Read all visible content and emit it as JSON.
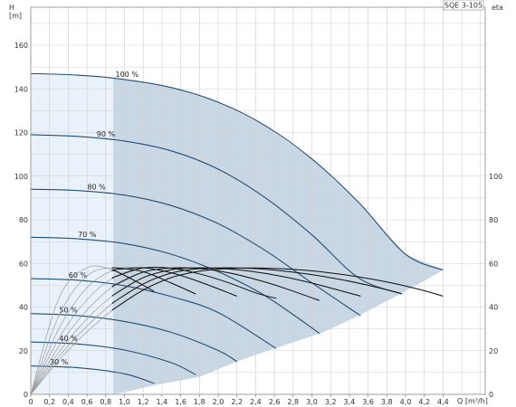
{
  "chart_data": {
    "type": "line",
    "title": "SQE 3-105",
    "xlabel": "Q [m³/h]",
    "ylabel": "H\n[m]",
    "y2label": "eta",
    "xlim": [
      0,
      5.0
    ],
    "ylim": [
      0,
      180
    ],
    "y2lim": [
      0,
      180
    ],
    "x_ticks": [
      "0",
      "0,2",
      "0,4",
      "0,6",
      "0,8",
      "1,0",
      "1,2",
      "1,4",
      "1,6",
      "1,8",
      "2,0",
      "2,2",
      "2,4",
      "2,6",
      "2,8",
      "3,0",
      "3,2",
      "3,4",
      "3,6",
      "3,8",
      "4,0",
      "4,2",
      "4,4"
    ],
    "x_tick_values": [
      0,
      0.2,
      0.4,
      0.6,
      0.8,
      1.0,
      1.2,
      1.4,
      1.6,
      1.8,
      2.0,
      2.2,
      2.4,
      2.6,
      2.8,
      3.0,
      3.2,
      3.4,
      3.6,
      3.8,
      4.0,
      4.2,
      4.4
    ],
    "y_ticks": [
      0,
      20,
      40,
      60,
      80,
      100,
      120,
      140,
      160
    ],
    "y2_ticks": [
      0,
      20,
      40,
      60,
      80,
      100
    ],
    "grid": true,
    "colors": {
      "head_curve": "#1f4e79",
      "eff_curve": "#111111",
      "eff_curve_light": "#9a9a9a",
      "region_fill": "#c9d7e4",
      "region_light": "#e9f2fb"
    },
    "head_curves": [
      {
        "label": "100 %",
        "x": [
          0,
          0.5,
          1.0,
          1.5,
          2.0,
          2.5,
          3.0,
          3.5,
          4.0,
          4.4
        ],
        "y": [
          147,
          146.3,
          144.3,
          140.6,
          133.9,
          123.2,
          107.9,
          87.9,
          64.2,
          57
        ]
      },
      {
        "label": "90 %",
        "x": [
          0,
          0.5,
          1.0,
          1.5,
          2.0,
          2.5,
          3.0,
          3.5,
          3.96
        ],
        "y": [
          119,
          118.2,
          116.1,
          111.6,
          103.2,
          90.2,
          73.1,
          53.3,
          46
        ]
      },
      {
        "label": "80 %",
        "x": [
          0,
          0.5,
          1.0,
          1.5,
          2.0,
          2.5,
          3.0,
          3.52
        ],
        "y": [
          94,
          93.4,
          91.3,
          86.5,
          78.2,
          66.0,
          51.1,
          36
        ]
      },
      {
        "label": "70 %",
        "x": [
          0,
          0.5,
          1.0,
          1.5,
          2.0,
          2.5,
          3.08
        ],
        "y": [
          72,
          71.3,
          69.1,
          64.2,
          56.2,
          45.2,
          28
        ]
      },
      {
        "label": "60 %",
        "x": [
          0,
          0.5,
          1.0,
          1.5,
          2.0,
          2.62
        ],
        "y": [
          53,
          52.3,
          49.8,
          44.8,
          37.5,
          21
        ]
      },
      {
        "label": "50 %",
        "x": [
          0,
          0.5,
          1.0,
          1.5,
          2.0,
          2.2
        ],
        "y": [
          37,
          36.1,
          33.4,
          28.4,
          20.1,
          15
        ]
      },
      {
        "label": "40 %",
        "x": [
          0,
          0.5,
          1.0,
          1.5,
          1.76
        ],
        "y": [
          24,
          23.1,
          20.3,
          14.5,
          9
        ]
      },
      {
        "label": "30 %",
        "x": [
          0,
          0.5,
          1.0,
          1.32
        ],
        "y": [
          13,
          12.2,
          9.4,
          5
        ]
      }
    ],
    "efficiency_curves": [
      {
        "x": [
          0,
          0.3,
          0.6,
          0.9,
          1.2,
          1.5,
          1.8,
          2.1,
          2.4,
          2.7,
          3.0,
          3.3,
          3.6,
          3.9,
          4.2,
          4.4
        ],
        "y": [
          0,
          15.6,
          28.7,
          39.5,
          47.8,
          53.5,
          56.4,
          57.6,
          57.9,
          57.5,
          56.6,
          55.1,
          53.1,
          50.6,
          47.5,
          45
        ]
      },
      {
        "x": [
          0,
          0.3,
          0.6,
          0.9,
          1.2,
          1.5,
          1.8,
          2.1,
          2.4,
          2.7,
          3.0,
          3.3,
          3.6,
          3.9,
          3.96
        ],
        "y": [
          0,
          17.3,
          31.3,
          42.6,
          50.6,
          55.6,
          57.6,
          58.0,
          57.6,
          56.5,
          54.9,
          52.7,
          50.0,
          46.8,
          46
        ]
      },
      {
        "x": [
          0,
          0.3,
          0.6,
          0.9,
          1.2,
          1.5,
          1.8,
          2.1,
          2.4,
          2.7,
          3.0,
          3.3,
          3.52
        ],
        "y": [
          0,
          19.4,
          34.6,
          46.0,
          53.5,
          57.1,
          58.0,
          57.5,
          56.1,
          53.9,
          51.0,
          47.6,
          45
        ]
      },
      {
        "x": [
          0,
          0.3,
          0.6,
          0.9,
          1.2,
          1.5,
          1.8,
          2.1,
          2.4,
          2.7,
          3.08
        ],
        "y": [
          0,
          22.1,
          38.6,
          50.1,
          56.0,
          57.9,
          57.6,
          55.8,
          52.7,
          48.8,
          43
        ]
      },
      {
        "x": [
          0,
          0.3,
          0.6,
          0.9,
          1.2,
          1.5,
          1.8,
          2.1,
          2.4,
          2.62
        ],
        "y": [
          0,
          25.6,
          43.4,
          53.9,
          57.9,
          57.8,
          55.2,
          51.3,
          46.5,
          44
        ]
      },
      {
        "x": [
          0,
          0.3,
          0.6,
          0.9,
          1.2,
          1.5,
          1.8,
          2.2
        ],
        "y": [
          0,
          30.1,
          48.9,
          57.1,
          58.0,
          55.7,
          51.6,
          45
        ]
      },
      {
        "x": [
          0,
          0.3,
          0.6,
          0.9,
          1.2,
          1.5,
          1.76
        ],
        "y": [
          0,
          36.0,
          54.3,
          58.0,
          56.2,
          51.0,
          46
        ]
      },
      {
        "x": [
          0,
          0.3,
          0.6,
          0.9,
          1.2,
          1.32
        ],
        "y": [
          0,
          44.0,
          58.0,
          56.6,
          50.0,
          47
        ]
      }
    ],
    "operating_area": {
      "x_min": 0.88,
      "upper_curve": "100 %",
      "lower_boundary": {
        "x": [
          1.0,
          1.3,
          1.8,
          2.2,
          2.6,
          3.1,
          3.5,
          3.9,
          4.2,
          4.4
        ],
        "y": [
          1,
          4,
          8,
          15,
          21,
          28,
          36,
          45,
          52,
          57
        ]
      }
    }
  }
}
